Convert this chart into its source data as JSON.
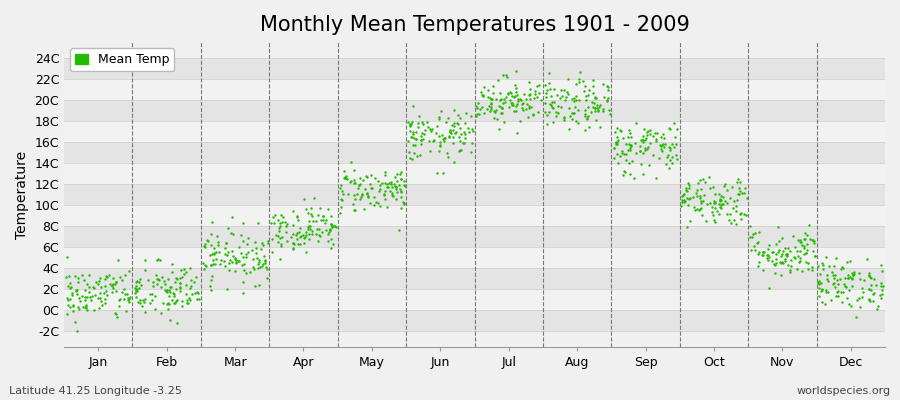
{
  "title": "Monthly Mean Temperatures 1901 - 2009",
  "ylabel": "Temperature",
  "footnote_left": "Latitude 41.25 Longitude -3.25",
  "footnote_right": "worldspecies.org",
  "legend_label": "Mean Temp",
  "dot_color": "#22bb00",
  "background_color": "#f0f0f0",
  "row_colors": [
    "#e4e4e4",
    "#f2f2f2"
  ],
  "ylim": [
    -3.5,
    25.5
  ],
  "yticks": [
    -2,
    0,
    2,
    4,
    6,
    8,
    10,
    12,
    14,
    16,
    18,
    20,
    22,
    24
  ],
  "ytick_labels": [
    "-2C",
    "0C",
    "2C",
    "4C",
    "6C",
    "8C",
    "10C",
    "12C",
    "14C",
    "16C",
    "18C",
    "20C",
    "22C",
    "24C"
  ],
  "month_names": [
    "Jan",
    "Feb",
    "Mar",
    "Apr",
    "May",
    "Jun",
    "Jul",
    "Aug",
    "Sep",
    "Oct",
    "Nov",
    "Dec"
  ],
  "month_means": [
    1.5,
    1.8,
    5.2,
    7.8,
    11.5,
    16.5,
    20.0,
    19.5,
    15.5,
    10.5,
    5.5,
    2.5
  ],
  "month_stds": [
    1.3,
    1.4,
    1.3,
    1.1,
    1.1,
    1.2,
    1.1,
    1.2,
    1.3,
    1.2,
    1.2,
    1.2
  ],
  "n_years": 109,
  "dot_size": 3,
  "title_fontsize": 15,
  "axis_fontsize": 10,
  "tick_fontsize": 9
}
